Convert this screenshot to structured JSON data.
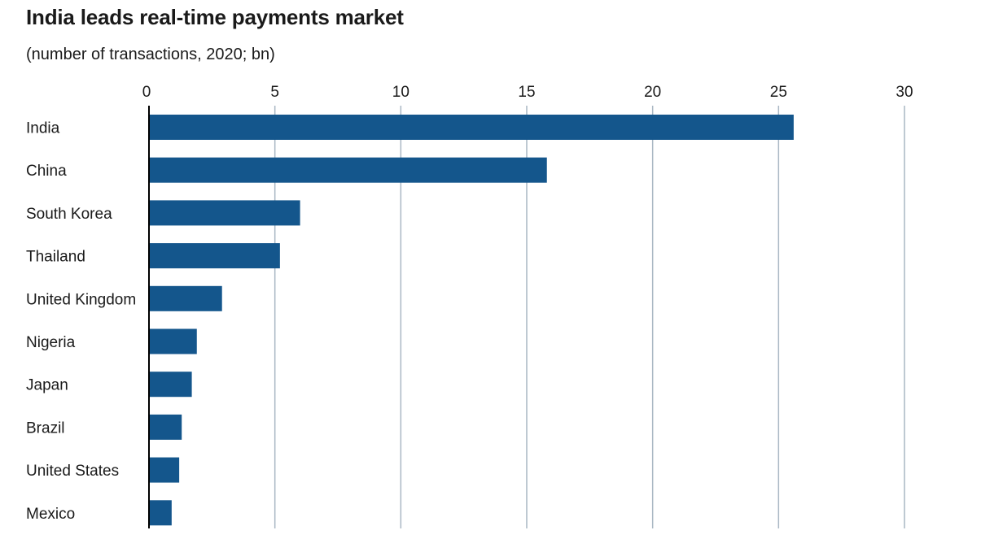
{
  "chart_data": {
    "type": "bar",
    "orientation": "horizontal",
    "title": "India leads real-time payments market",
    "subtitle": "(number of transactions, 2020; bn)",
    "xlabel": "",
    "ylabel": "",
    "xlim": [
      0,
      30
    ],
    "x_ticks": [
      0,
      5,
      10,
      15,
      20,
      25,
      30
    ],
    "grid": "vertical",
    "bar_color": "#14568c",
    "categories": [
      "India",
      "China",
      "South Korea",
      "Thailand",
      "United Kingdom",
      "Nigeria",
      "Japan",
      "Brazil",
      "United States",
      "Mexico"
    ],
    "values": [
      25.6,
      15.8,
      6.0,
      5.2,
      2.9,
      1.9,
      1.7,
      1.3,
      1.2,
      0.9
    ]
  }
}
